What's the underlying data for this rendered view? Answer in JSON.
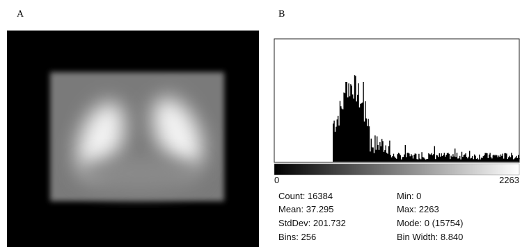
{
  "panels": {
    "a": "A",
    "b": "B"
  },
  "histogram": {
    "axis_min": "0",
    "axis_max": "2263",
    "stats": [
      [
        "Count: 16384",
        "Min: 0"
      ],
      [
        "Mean: 37.295",
        "Max: 2263"
      ],
      [
        "StdDev: 201.732",
        "Mode: 0 (15754)"
      ],
      [
        "Bins: 256",
        "Bin Width: 8.840"
      ]
    ]
  }
}
